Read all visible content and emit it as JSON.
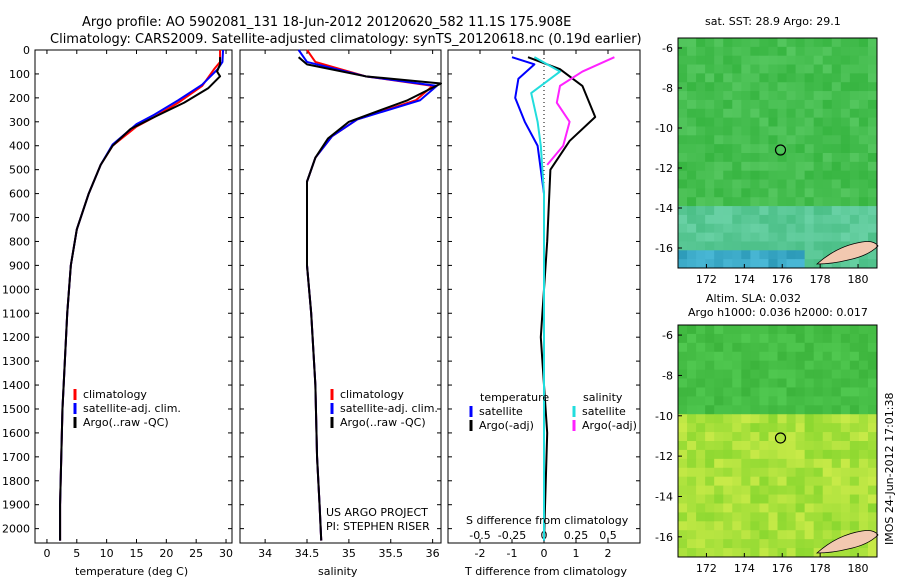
{
  "header": {
    "line1": "Argo profile: AO 5902081_131 18-Jun-2012 20120620_582 11.1S 175.908E",
    "line2": "Climatology: CARS2009. Satellite-adjusted climatology: synTS_20120618.nc (0.19d earlier)"
  },
  "colors": {
    "climatology": "#ff0000",
    "satellite": "#0000ff",
    "argo": "#000000",
    "sat_salinity": "#22dddd",
    "argo_salinity": "#ff22ff"
  },
  "chart_data": [
    {
      "type": "line",
      "name": "temperature-panel",
      "xlabel": "temperature (deg C)",
      "ylabel": "",
      "xlim": [
        -2,
        31
      ],
      "ylim": [
        2060,
        0
      ],
      "xticks": [
        0,
        5,
        10,
        15,
        20,
        25,
        30
      ],
      "yticks": [
        0,
        100,
        200,
        300,
        400,
        500,
        600,
        700,
        800,
        900,
        1000,
        1100,
        1200,
        1300,
        1400,
        1500,
        1600,
        1700,
        1800,
        1900,
        2000
      ],
      "legend": [
        "climatology",
        "satellite-adj. clim.",
        "Argo(..raw -QC)"
      ],
      "legend_position": "lower-left",
      "series": [
        {
          "name": "climatology",
          "x": [
            29,
            29,
            28,
            26,
            22,
            18,
            15,
            11,
            9,
            7,
            5,
            4,
            3.4,
            3.0,
            2.6,
            2.4,
            2.2,
            2.2
          ],
          "y": [
            0,
            50,
            80,
            150,
            220,
            280,
            320,
            400,
            480,
            600,
            750,
            900,
            1100,
            1300,
            1500,
            1700,
            1900,
            2050
          ]
        },
        {
          "name": "satellite-adj. clim.",
          "x": [
            29.5,
            29.4,
            28.6,
            26,
            22,
            18,
            15,
            11,
            9,
            7,
            5,
            4,
            3.4,
            3.0,
            2.6,
            2.4,
            2.2,
            2.2
          ],
          "y": [
            0,
            50,
            80,
            145,
            210,
            270,
            310,
            395,
            480,
            600,
            750,
            900,
            1100,
            1300,
            1500,
            1700,
            1900,
            2050
          ]
        },
        {
          "name": "Argo(..raw -QC)",
          "x": [
            29,
            29,
            28.5,
            29,
            27,
            23,
            18,
            14,
            11,
            9,
            7,
            5,
            4,
            3.4,
            3.0,
            2.6,
            2.4,
            2.2,
            2.2
          ],
          "y": [
            30,
            60,
            90,
            110,
            160,
            220,
            280,
            330,
            400,
            480,
            600,
            750,
            900,
            1100,
            1300,
            1500,
            1700,
            1900,
            2050
          ]
        }
      ]
    },
    {
      "type": "line",
      "name": "salinity-panel",
      "xlabel": "salinity",
      "xlim": [
        33.7,
        36.1
      ],
      "ylim": [
        2060,
        0
      ],
      "xticks": [
        34,
        34.5,
        35,
        35.5,
        36
      ],
      "xticklabels": [
        "34",
        "34.5",
        "35",
        "35.5",
        "36"
      ],
      "legend": [
        "climatology",
        "satellite-adj. clim.",
        "Argo(..raw -QC)"
      ],
      "legend_position": "lower-left",
      "annotation": [
        "US ARGO PROJECT",
        "PI: STEPHEN RISER"
      ],
      "series": [
        {
          "name": "climatology",
          "x": [
            34.5,
            34.6,
            35.2,
            36.0,
            35.8,
            35.1,
            34.8,
            34.6,
            34.5,
            34.5,
            34.5,
            34.55,
            34.6,
            34.62,
            34.65,
            34.67
          ],
          "y": [
            0,
            50,
            110,
            150,
            210,
            290,
            360,
            450,
            550,
            700,
            900,
            1100,
            1400,
            1700,
            1900,
            2050
          ]
        },
        {
          "name": "satellite-adj. clim.",
          "x": [
            34.4,
            34.5,
            35.2,
            36.05,
            35.85,
            35.1,
            34.8,
            34.6,
            34.5,
            34.5,
            34.5,
            34.55,
            34.6,
            34.62,
            34.65,
            34.67
          ],
          "y": [
            0,
            50,
            110,
            150,
            210,
            290,
            360,
            450,
            550,
            700,
            900,
            1100,
            1400,
            1700,
            1900,
            2050
          ]
        },
        {
          "name": "Argo(..raw -QC)",
          "x": [
            34.4,
            34.5,
            35.2,
            36.1,
            35.7,
            35.0,
            34.75,
            34.6,
            34.5,
            34.5,
            34.5,
            34.55,
            34.6,
            34.62,
            34.65,
            34.67
          ],
          "y": [
            30,
            60,
            110,
            140,
            210,
            300,
            370,
            450,
            550,
            700,
            900,
            1100,
            1400,
            1700,
            1900,
            2050
          ]
        }
      ]
    },
    {
      "type": "line",
      "name": "difference-panel",
      "xlabel": "T difference from climatology",
      "xlabel_top": "S difference from climatology",
      "xlim": [
        -3,
        3
      ],
      "ylim": [
        2060,
        0
      ],
      "xticks": [
        -2,
        -1,
        0,
        1,
        2
      ],
      "s_ticks": [
        -0.5,
        -0.25,
        0,
        0.25,
        0.5
      ],
      "s_ticklabels": [
        "-0.5",
        "-0.25",
        "0",
        "0.25",
        "0.5"
      ],
      "legend_titles": [
        "temperature",
        "salinity"
      ],
      "legend": [
        "satellite",
        "Argo(-adj)",
        "satellite",
        "Argo(-adj)"
      ],
      "legend_position": "lower-center",
      "series": [
        {
          "name": "temperature satellite",
          "x": [
            -1.0,
            -0.3,
            -0.8,
            -0.9,
            -0.6,
            -0.2,
            0,
            0,
            0,
            0
          ],
          "y": [
            30,
            60,
            120,
            200,
            300,
            400,
            600,
            1000,
            1500,
            2050
          ]
        },
        {
          "name": "temperature Argo(-adj)",
          "x": [
            -0.5,
            0.5,
            1.2,
            1.6,
            0.8,
            0.2,
            0.1,
            -0.1,
            0.1,
            0
          ],
          "y": [
            30,
            80,
            150,
            280,
            380,
            500,
            800,
            1200,
            1600,
            2050
          ]
        },
        {
          "name": "salinity satellite",
          "x": [
            -0.3,
            0.5,
            -0.4,
            -0.2,
            -0.1,
            0,
            0,
            0,
            0
          ],
          "y": [
            30,
            90,
            180,
            300,
            400,
            600,
            1000,
            1500,
            2050
          ]
        },
        {
          "name": "salinity Argo(-adj)",
          "x": [
            2.2,
            1.2,
            0.5,
            0.4,
            0.8,
            0.6,
            0.1
          ],
          "y": [
            30,
            90,
            150,
            220,
            300,
            400,
            480
          ]
        }
      ]
    },
    {
      "type": "heatmap",
      "name": "sst-map",
      "title": "sat. SST: 28.9 Argo: 29.1",
      "xlim": [
        170.5,
        181
      ],
      "ylim": [
        -17,
        -5.5
      ],
      "xticks": [
        172,
        174,
        176,
        178,
        180
      ],
      "yticks": [
        -6,
        -8,
        -10,
        -12,
        -14,
        -16
      ],
      "marker": {
        "x": 175.908,
        "y": -11.1
      }
    },
    {
      "type": "heatmap",
      "name": "sla-map",
      "title": [
        "Altim. SLA: 0.032",
        "Argo h1000: 0.036 h2000: 0.017"
      ],
      "xlim": [
        170.5,
        181
      ],
      "ylim": [
        -17,
        -5.5
      ],
      "xticks": [
        172,
        174,
        176,
        178,
        180
      ],
      "yticks": [
        -6,
        -8,
        -10,
        -12,
        -14,
        -16
      ],
      "marker": {
        "x": 175.908,
        "y": -11.1
      }
    }
  ],
  "side_label": "IMOS 24-Jun-2012 17:01:38"
}
